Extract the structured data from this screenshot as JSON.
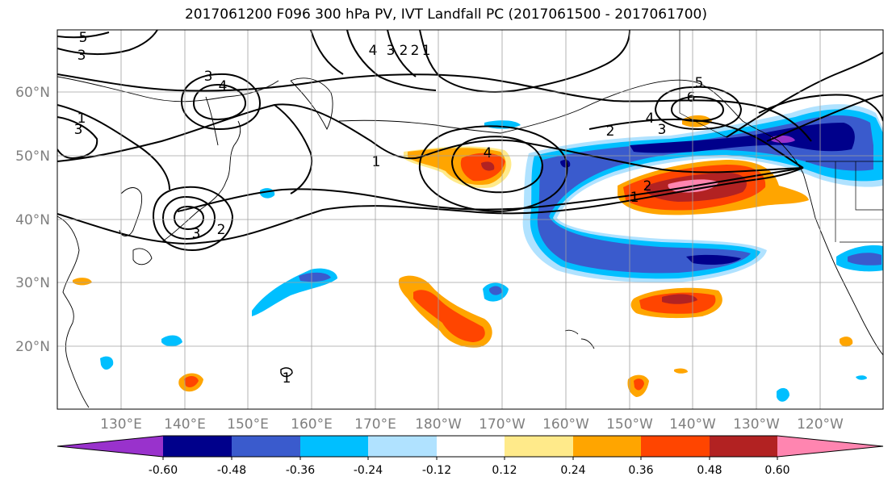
{
  "title": "2017061200 F096 300 hPa PV, IVT Landfall PC (2017061500 - 2017061700)",
  "latitude_labels": [
    "60°N",
    "50°N",
    "40°N",
    "30°N",
    "20°N"
  ],
  "longitude_labels": [
    "130°E",
    "140°E",
    "150°E",
    "160°E",
    "170°E",
    "180°W",
    "170°W",
    "160°W",
    "150°W",
    "140°W",
    "130°W",
    "120°W"
  ],
  "colorbar": {
    "colors": [
      "#9932cc",
      "#00008b",
      "#3a5bcd",
      "#00bfff",
      "#b0e2ff",
      "#ffffff",
      "#ffea8a",
      "#ffa500",
      "#ff4500",
      "#b22222",
      "#ff85b0"
    ],
    "tick_labels": [
      "-0.60",
      "-0.48",
      "-0.36",
      "-0.24",
      "-0.12",
      "0.12",
      "0.24",
      "0.36",
      "0.48",
      "0.60"
    ]
  },
  "contour_labels": [
    "5",
    "3",
    "3",
    "4",
    "1",
    "3",
    "3",
    "2",
    "4",
    "3",
    "2",
    "2",
    "1",
    "1",
    "4",
    "5",
    "6",
    "4",
    "3",
    "2",
    "2",
    "1",
    "1"
  ]
}
